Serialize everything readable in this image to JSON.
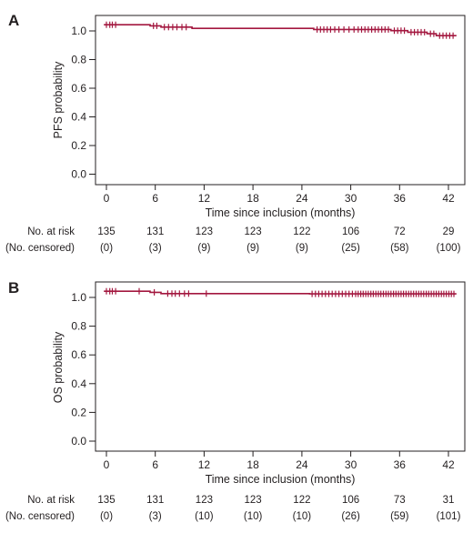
{
  "chart_data": [
    {
      "type": "line",
      "panel_label": "A",
      "xlabel": "Time since inclusion (months)",
      "ylabel": "PFS probability",
      "xlim": [
        -1,
        43
      ],
      "ylim": [
        -0.03,
        1.06
      ],
      "x_ticks": [
        0,
        6,
        12,
        18,
        24,
        30,
        36,
        42
      ],
      "y_ticks": [
        0.0,
        0.2,
        0.4,
        0.6,
        0.8,
        1.0
      ],
      "y_tick_labels": [
        "0.0",
        "0.2",
        "0.4",
        "0.6",
        "0.8",
        "1.0"
      ],
      "grid": false,
      "line_color": "#a3173f",
      "series": [
        {
          "steps": [
            [
              0,
              1.0
            ],
            [
              5.5,
              0.993
            ],
            [
              6.8,
              0.985
            ],
            [
              10.5,
              0.977
            ],
            [
              25,
              0.97
            ],
            [
              34.2,
              0.962
            ],
            [
              36.2,
              0.952
            ],
            [
              38.5,
              0.942
            ],
            [
              39.6,
              0.93
            ],
            [
              42,
              0.93
            ]
          ],
          "censor_times": [
            0.3,
            0.7,
            1.0,
            1.4,
            5.9,
            6.3,
            7.2,
            7.7,
            8.2,
            8.7,
            9.3,
            9.8,
            25.4,
            25.8,
            26.2,
            26.6,
            27.0,
            27.5,
            28.0,
            28.6,
            29.2,
            29.8,
            30.3,
            30.7,
            31.1,
            31.5,
            31.9,
            32.3,
            32.7,
            33.1,
            33.5,
            33.9,
            34.6,
            35.0,
            35.4,
            35.8,
            36.6,
            37.0,
            37.4,
            37.8,
            38.2,
            38.9,
            39.3,
            40.0,
            40.4,
            40.8,
            41.2,
            41.6
          ]
        }
      ],
      "risk_table": {
        "label": "No. at risk",
        "values": [
          "135",
          "131",
          "123",
          "123",
          "122",
          "106",
          "72",
          "29"
        ]
      },
      "censored_table": {
        "label": "(No. censored)",
        "values": [
          "(0)",
          "(3)",
          "(9)",
          "(9)",
          "(9)",
          "(25)",
          "(58)",
          "(100)"
        ]
      }
    },
    {
      "type": "line",
      "panel_label": "B",
      "xlabel": "Time since inclusion (months)",
      "ylabel": "OS probability",
      "xlim": [
        -1,
        43
      ],
      "ylim": [
        -0.03,
        1.06
      ],
      "x_ticks": [
        0,
        6,
        12,
        18,
        24,
        30,
        36,
        42
      ],
      "y_ticks": [
        0.0,
        0.2,
        0.4,
        0.6,
        0.8,
        1.0
      ],
      "y_tick_labels": [
        "0.0",
        "0.2",
        "0.4",
        "0.6",
        "0.8",
        "1.0"
      ],
      "grid": false,
      "line_color": "#a3173f",
      "series": [
        {
          "steps": [
            [
              0,
              1.0
            ],
            [
              5.5,
              0.993
            ],
            [
              6.8,
              0.985
            ],
            [
              24.5,
              0.983
            ],
            [
              42,
              0.983
            ]
          ],
          "censor_times": [
            0.3,
            0.7,
            1.0,
            1.4,
            4.2,
            6.0,
            7.6,
            8.1,
            8.5,
            9.0,
            9.6,
            10.1,
            12.2,
            24.8,
            25.2,
            25.6,
            26.0,
            26.4,
            26.8,
            27.2,
            27.6,
            28.0,
            28.4,
            28.8,
            29.2,
            29.6,
            30.0,
            30.3,
            30.6,
            30.9,
            31.2,
            31.5,
            31.8,
            32.1,
            32.4,
            32.7,
            33.0,
            33.3,
            33.6,
            33.9,
            34.2,
            34.5,
            34.8,
            35.1,
            35.4,
            35.7,
            36.0,
            36.3,
            36.6,
            36.9,
            37.2,
            37.5,
            37.8,
            38.1,
            38.4,
            38.7,
            39.0,
            39.3,
            39.6,
            39.9,
            40.2,
            40.5,
            40.8,
            41.1,
            41.4,
            41.7
          ]
        }
      ],
      "risk_table": {
        "label": "No. at risk",
        "values": [
          "135",
          "131",
          "123",
          "123",
          "122",
          "106",
          "73",
          "31"
        ]
      },
      "censored_table": {
        "label": "(No. censored)",
        "values": [
          "(0)",
          "(3)",
          "(10)",
          "(10)",
          "(10)",
          "(26)",
          "(59)",
          "(101)"
        ]
      }
    }
  ]
}
